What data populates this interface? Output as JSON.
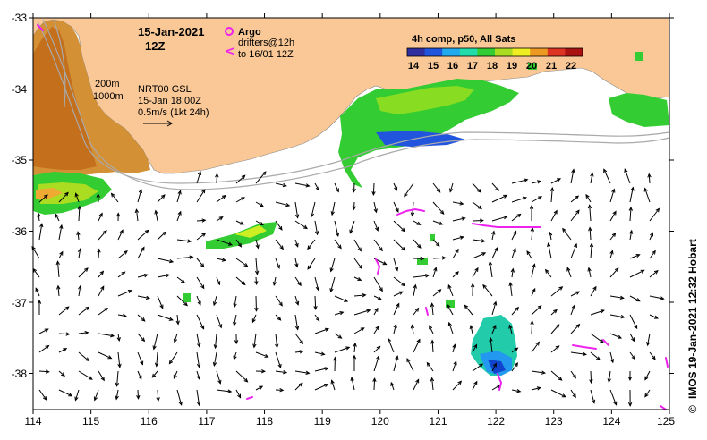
{
  "map": {
    "lon_ticks": [
      "114",
      "115",
      "116",
      "117",
      "118",
      "119",
      "120",
      "121",
      "122",
      "123",
      "124",
      "125"
    ],
    "lat_ticks": [
      "-33",
      "-34",
      "-35",
      "-36",
      "-37",
      "-38"
    ],
    "lon_range": [
      114,
      125
    ],
    "lat_range": [
      -38.5,
      -33
    ],
    "colors": {
      "land": "#f9c896",
      "ocean": "#ffffff",
      "shelf_warm": "#d08020",
      "shelf_hot": "#c06010",
      "green": "#33cc33",
      "yellow": "#ccee22",
      "blue": "#3399dd",
      "argo": "#ee22ee",
      "contour": "#aaaaaa"
    }
  },
  "annotation": {
    "date": "15-Jan-2021",
    "time": "12Z",
    "argo_label": "Argo",
    "drifters_line1": "drifters@12h",
    "drifters_line2": "to 16/01 12Z",
    "contour_200": "200m",
    "contour_1000": "1000m",
    "product_line1": "NRT00 GSL",
    "product_line2": "15-Jan 18:00Z",
    "speed_scale": "0.5m/s (1kt 24h)"
  },
  "legend": {
    "title": "4h comp, p50, All Sats",
    "values": [
      "14",
      "15",
      "16",
      "17",
      "18",
      "19",
      "20",
      "21",
      "22"
    ],
    "colors": [
      "#2f2f9f",
      "#2255dd",
      "#22aaee",
      "#22ddaa",
      "#33cc33",
      "#aadd22",
      "#eeee22",
      "#ee9922",
      "#dd3322",
      "#aa1111"
    ]
  },
  "credit": "IMOS 19-Jan-2021 12:32 Hobart",
  "copyright_symbol": "©"
}
